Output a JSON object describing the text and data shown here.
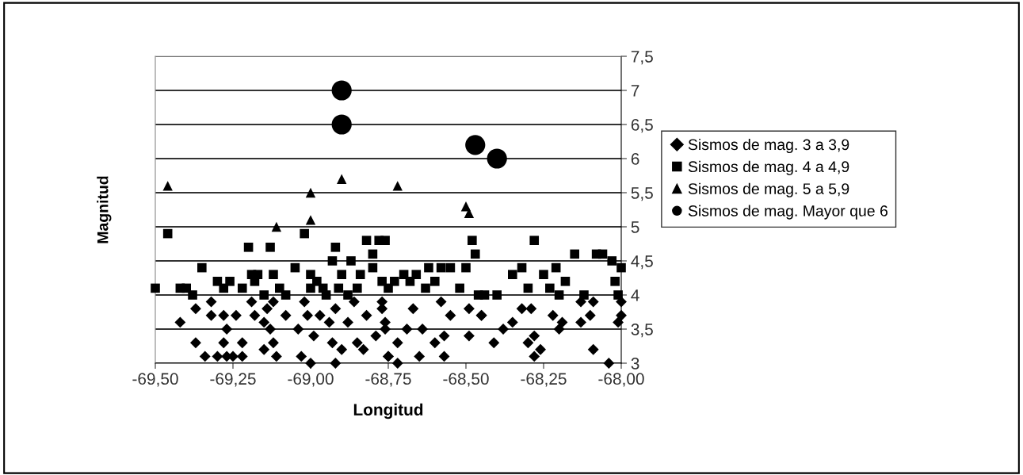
{
  "chart_data": {
    "type": "scatter",
    "xlabel": "Longitud",
    "ylabel": "Magnitud",
    "xlim": [
      -69.5,
      -68.0
    ],
    "ylim": [
      3,
      7.5
    ],
    "xticks": [
      {
        "value": -69.5,
        "label": "-69,50"
      },
      {
        "value": -69.25,
        "label": "-69,25"
      },
      {
        "value": -69.0,
        "label": "-69,00"
      },
      {
        "value": -68.75,
        "label": "-68,75"
      },
      {
        "value": -68.5,
        "label": "-68,50"
      },
      {
        "value": -68.25,
        "label": "-68,25"
      },
      {
        "value": -68.0,
        "label": "-68,00"
      }
    ],
    "yticks": [
      3,
      {
        "value": 3.5,
        "label": "3,5"
      },
      4,
      {
        "value": 4.5,
        "label": "4,5"
      },
      5,
      {
        "value": 5.5,
        "label": "5,5"
      },
      6,
      {
        "value": 6.5,
        "label": "6,5"
      },
      7,
      {
        "value": 7.5,
        "label": "7,5"
      }
    ],
    "grid": "y",
    "legend": "right",
    "series": [
      {
        "name": "Sismos de mag. 3 a 3,9",
        "color": "#000000",
        "marker": "diamond",
        "x": [
          -69.42,
          -69.37,
          -69.32,
          -69.32,
          -69.37,
          -69.34,
          -69.3,
          -69.27,
          -69.25,
          -69.22,
          -69.28,
          -69.24,
          -69.27,
          -69.28,
          -69.22,
          -69.19,
          -69.18,
          -69.14,
          -69.15,
          -69.13,
          -69.12,
          -69.15,
          -69.12,
          -69.08,
          -69.11,
          -69.04,
          -69.02,
          -69.01,
          -68.99,
          -69.03,
          -69.0,
          -68.97,
          -68.94,
          -68.93,
          -68.92,
          -68.9,
          -68.92,
          -68.88,
          -68.86,
          -68.85,
          -68.83,
          -68.82,
          -68.79,
          -68.77,
          -68.76,
          -68.75,
          -68.77,
          -68.76,
          -68.72,
          -68.75,
          -68.72,
          -68.67,
          -68.69,
          -68.64,
          -68.65,
          -68.6,
          -68.58,
          -68.57,
          -68.55,
          -68.57,
          -68.49,
          -68.49,
          -68.45,
          -68.45,
          -68.41,
          -68.38,
          -68.35,
          -68.32,
          -68.29,
          -68.3,
          -68.28,
          -68.28,
          -68.26,
          -68.22,
          -68.19,
          -68.2,
          -68.13,
          -68.13,
          -68.1,
          -68.09,
          -68.09,
          -68.04,
          -68.0,
          -68.0,
          -68.01
        ],
        "values": [
          3.6,
          3.8,
          3.9,
          3.7,
          3.3,
          3.1,
          3.1,
          3.1,
          3.1,
          3.1,
          3.7,
          3.7,
          3.5,
          3.3,
          3.3,
          3.9,
          3.7,
          3.8,
          3.6,
          3.5,
          3.3,
          3.2,
          3.9,
          3.7,
          3.1,
          3.5,
          3.9,
          3.7,
          3.4,
          3.1,
          3.0,
          3.7,
          3.6,
          3.3,
          3.0,
          3.2,
          3.8,
          3.6,
          3.9,
          3.3,
          3.2,
          3.7,
          3.4,
          3.9,
          3.6,
          3.1,
          3.8,
          3.5,
          3.3,
          3.1,
          3.0,
          3.8,
          3.5,
          3.5,
          3.1,
          3.3,
          3.9,
          3.4,
          3.7,
          3.1,
          3.8,
          3.4,
          3.7,
          3.7,
          3.3,
          3.5,
          3.6,
          3.8,
          3.8,
          3.3,
          3.4,
          3.1,
          3.2,
          3.7,
          3.6,
          3.5,
          3.9,
          3.6,
          3.7,
          3.9,
          3.2,
          3.0,
          3.9,
          3.7,
          3.6
        ]
      },
      {
        "name": "Sismos de mag. 4 a 4,9",
        "color": "#000000",
        "marker": "square",
        "x": [
          -69.46,
          -69.5,
          -69.42,
          -69.4,
          -69.38,
          -69.35,
          -69.3,
          -69.28,
          -69.26,
          -69.22,
          -69.2,
          -69.19,
          -69.18,
          -69.17,
          -69.15,
          -69.13,
          -69.12,
          -69.1,
          -69.08,
          -69.05,
          -69.02,
          -69.0,
          -69.0,
          -68.98,
          -68.96,
          -68.95,
          -68.93,
          -68.92,
          -68.91,
          -68.9,
          -68.88,
          -68.87,
          -68.85,
          -68.84,
          -68.82,
          -68.8,
          -68.8,
          -68.78,
          -68.77,
          -68.76,
          -68.75,
          -68.73,
          -68.7,
          -68.68,
          -68.66,
          -68.63,
          -68.62,
          -68.6,
          -68.58,
          -68.55,
          -68.52,
          -68.5,
          -68.48,
          -68.47,
          -68.46,
          -68.44,
          -68.4,
          -68.35,
          -68.32,
          -68.3,
          -68.28,
          -68.25,
          -68.23,
          -68.21,
          -68.2,
          -68.18,
          -68.15,
          -68.12,
          -68.08,
          -68.06,
          -68.03,
          -68.02,
          -68.01,
          -68.0
        ],
        "values": [
          4.9,
          4.1,
          4.1,
          4.1,
          4.0,
          4.4,
          4.2,
          4.1,
          4.2,
          4.1,
          4.7,
          4.3,
          4.2,
          4.3,
          4.0,
          4.7,
          4.3,
          4.1,
          4.0,
          4.4,
          4.9,
          4.3,
          4.1,
          4.2,
          4.1,
          4.0,
          4.5,
          4.7,
          4.1,
          4.3,
          4.0,
          4.5,
          4.1,
          4.3,
          4.8,
          4.6,
          4.4,
          4.8,
          4.2,
          4.8,
          4.1,
          4.2,
          4.3,
          4.2,
          4.3,
          4.1,
          4.4,
          4.2,
          4.4,
          4.4,
          4.1,
          4.4,
          4.8,
          4.6,
          4.0,
          4.0,
          4.0,
          4.3,
          4.4,
          4.1,
          4.8,
          4.3,
          4.1,
          4.4,
          4.0,
          4.2,
          4.6,
          4.0,
          4.6,
          4.6,
          4.5,
          4.2,
          4.0,
          4.4
        ]
      },
      {
        "name": "Sismos de mag. 5 a 5,9",
        "color": "#000000",
        "marker": "triangle",
        "x": [
          -69.46,
          -69.0,
          -69.0,
          -69.11,
          -68.9,
          -68.72,
          -68.5,
          -68.49
        ],
        "values": [
          5.6,
          5.5,
          5.1,
          5.0,
          5.7,
          5.6,
          5.3,
          5.2
        ]
      },
      {
        "name": "Sismos de mag. Mayor que 6",
        "color": "#000000",
        "marker": "circle",
        "x": [
          -68.9,
          -68.9,
          -68.47,
          -68.4
        ],
        "values": [
          7.0,
          6.5,
          6.2,
          6.0
        ]
      }
    ]
  }
}
